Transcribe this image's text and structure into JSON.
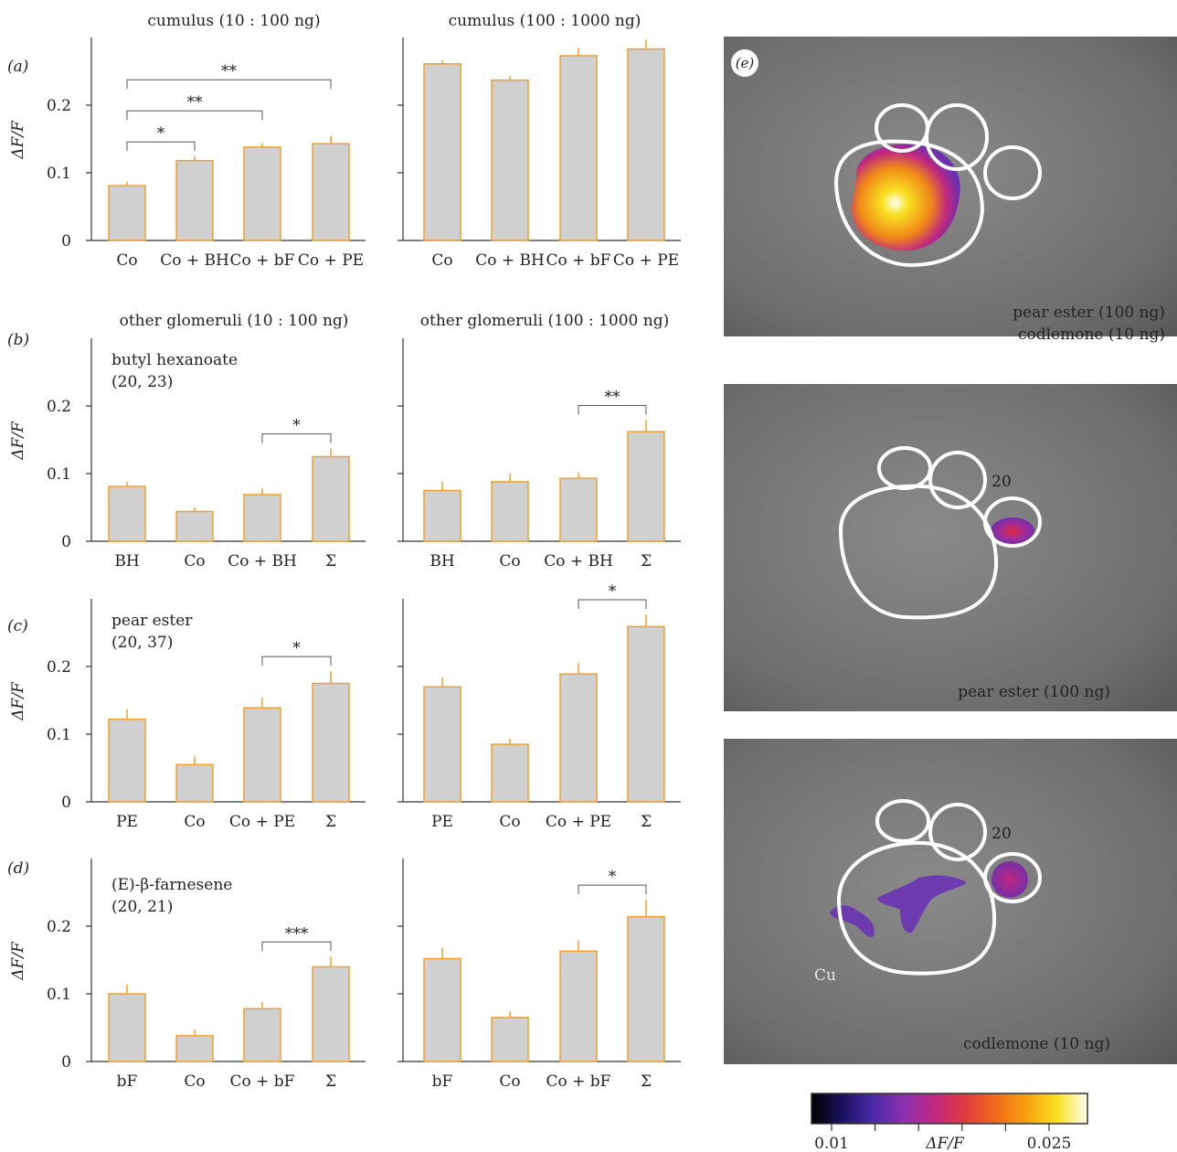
{
  "chart_data": [
    {
      "type": "bar",
      "panel": "(a)",
      "title": "cumulus (10 : 100 ng)",
      "ylabel": "ΔF/F",
      "ylim": [
        0,
        0.3
      ],
      "yticks": [
        "0",
        "0.1",
        "0.2"
      ],
      "categories": [
        "Co",
        "Co + BH",
        "Co + bF",
        "Co + PE"
      ],
      "values": [
        0.081,
        0.118,
        0.138,
        0.143
      ],
      "errors": [
        0.006,
        0.006,
        0.006,
        0.012
      ],
      "annotations": [
        {
          "from": 0,
          "to": 1,
          "label": "*"
        },
        {
          "from": 0,
          "to": 2,
          "label": "**"
        },
        {
          "from": 0,
          "to": 3,
          "label": "**"
        }
      ]
    },
    {
      "type": "bar",
      "title": "cumulus (100 : 1000 ng)",
      "ylim": [
        0,
        0.3
      ],
      "categories": [
        "Co",
        "Co + BH",
        "Co + bF",
        "Co + PE"
      ],
      "values": [
        0.261,
        0.237,
        0.273,
        0.283
      ],
      "errors": [
        0.006,
        0.006,
        0.012,
        0.014
      ],
      "annotations": []
    },
    {
      "type": "bar",
      "panel": "(b)",
      "title": "other glomeruli (10 : 100 ng)",
      "ylabel": "ΔF/F",
      "ylim": [
        0,
        0.3
      ],
      "yticks": [
        "0",
        "0.1",
        "0.2"
      ],
      "inset": [
        "butyl hexanoate",
        "(20, 23)"
      ],
      "categories": [
        "BH",
        "Co",
        "Co + BH",
        "Σ"
      ],
      "values": [
        0.081,
        0.044,
        0.069,
        0.125
      ],
      "errors": [
        0.007,
        0.006,
        0.009,
        0.012
      ],
      "annotations": [
        {
          "from": 2,
          "to": 3,
          "label": "*"
        }
      ]
    },
    {
      "type": "bar",
      "title": "other glomeruli (100 : 1000 ng)",
      "ylim": [
        0,
        0.3
      ],
      "categories": [
        "BH",
        "Co",
        "Co + BH",
        "Σ"
      ],
      "values": [
        0.075,
        0.088,
        0.093,
        0.162
      ],
      "errors": [
        0.013,
        0.012,
        0.009,
        0.017
      ],
      "annotations": [
        {
          "from": 2,
          "to": 3,
          "label": "**"
        }
      ]
    },
    {
      "type": "bar",
      "panel": "(c)",
      "ylabel": "ΔF/F",
      "ylim": [
        0,
        0.3
      ],
      "yticks": [
        "0",
        "0.1",
        "0.2"
      ],
      "inset": [
        "pear ester",
        "(20, 37)"
      ],
      "categories": [
        "PE",
        "Co",
        "Co + PE",
        "Σ"
      ],
      "values": [
        0.122,
        0.055,
        0.139,
        0.175
      ],
      "errors": [
        0.015,
        0.012,
        0.015,
        0.018
      ],
      "annotations": [
        {
          "from": 2,
          "to": 3,
          "label": "*"
        }
      ]
    },
    {
      "type": "bar",
      "ylim": [
        0,
        0.3
      ],
      "categories": [
        "PE",
        "Co",
        "Co + PE",
        "Σ"
      ],
      "values": [
        0.17,
        0.085,
        0.189,
        0.259
      ],
      "errors": [
        0.014,
        0.008,
        0.016,
        0.018
      ],
      "annotations": [
        {
          "from": 2,
          "to": 3,
          "label": "*"
        }
      ]
    },
    {
      "type": "bar",
      "panel": "(d)",
      "ylabel": "ΔF/F",
      "ylim": [
        0,
        0.3
      ],
      "yticks": [
        "0",
        "0.1",
        "0.2"
      ],
      "inset": [
        "(E)-β-farnesene",
        "(20, 21)"
      ],
      "categories": [
        "bF",
        "Co",
        "Co + bF",
        "Σ"
      ],
      "values": [
        0.1,
        0.038,
        0.078,
        0.14
      ],
      "errors": [
        0.014,
        0.009,
        0.01,
        0.015
      ],
      "annotations": [
        {
          "from": 2,
          "to": 3,
          "label": "***"
        }
      ]
    },
    {
      "type": "bar",
      "ylim": [
        0,
        0.3
      ],
      "categories": [
        "bF",
        "Co",
        "Co + bF",
        "Σ"
      ],
      "values": [
        0.152,
        0.065,
        0.163,
        0.214
      ],
      "errors": [
        0.016,
        0.009,
        0.016,
        0.025
      ],
      "annotations": [
        {
          "from": 2,
          "to": 3,
          "label": "*"
        }
      ]
    }
  ],
  "style": {
    "bar_fill": "#d0d0d0",
    "bar_edge": "#f0a030",
    "axis": "#333333",
    "photo_bg": "#8a8a8a",
    "outline": "#ffffff"
  },
  "images": {
    "panel_label": "(e)",
    "captions": [
      [
        "pear ester (100 ng)",
        "codlemone (10 ng)"
      ],
      [
        "pear ester (100 ng)"
      ],
      [
        "codlemone (10 ng)"
      ]
    ],
    "glomerulus_label": "20",
    "cumulus_label": "Cu"
  },
  "colorbar": {
    "min_label": "0.01",
    "mid_label": "ΔF/F",
    "max_label": "0.025",
    "min": 0.01,
    "max": 0.025,
    "colors": [
      "#000000",
      "#1c1260",
      "#4a2aa8",
      "#8a30b0",
      "#c02880",
      "#e03a40",
      "#f06a18",
      "#f8a010",
      "#f8e020",
      "#fffff0"
    ]
  }
}
